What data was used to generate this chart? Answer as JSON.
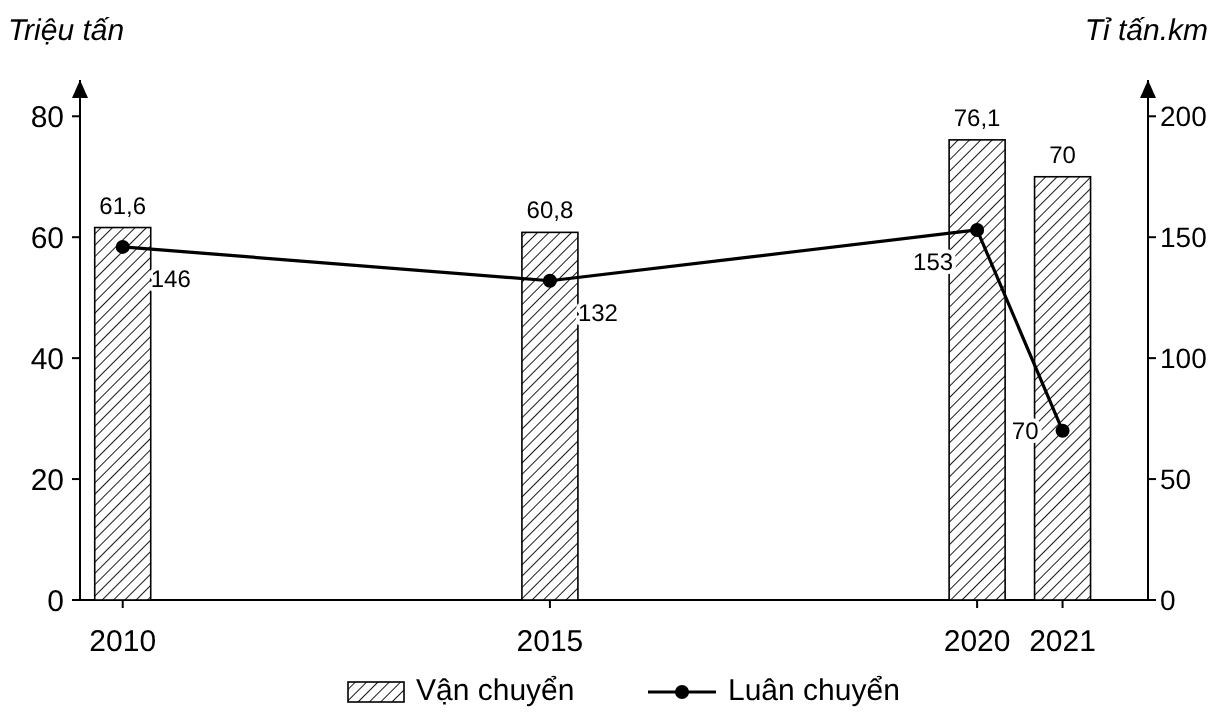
{
  "chart_data": {
    "type": "bar",
    "x": [
      2010,
      2015,
      2020,
      2021
    ],
    "xticks": [
      2010,
      2015,
      2020,
      2021
    ],
    "xlim": [
      2009.5,
      2022
    ],
    "ylabel": "Triệu tấn",
    "y2label": "Tỉ tấn.km",
    "ylim": [
      0,
      86
    ],
    "yticks": [
      0,
      20,
      40,
      60,
      80
    ],
    "y2lim": [
      0,
      215
    ],
    "y2ticks": [
      0,
      50,
      100,
      150,
      200
    ],
    "series": [
      {
        "name": "Vận chuyển",
        "color": "#000000",
        "values": [
          61.6,
          60.8,
          76.1,
          70
        ],
        "value_labels": [
          "61,6",
          "60,8",
          "76,1",
          "70"
        ]
      },
      {
        "name": "Luân chuyển",
        "type": "line",
        "axis": "y2",
        "color": "#000000",
        "marker": "circle",
        "line_style": "solid",
        "values": [
          146,
          132,
          153,
          70
        ],
        "value_labels": [
          "146",
          "132",
          "153",
          "70"
        ]
      }
    ],
    "legend": "bottom",
    "grid": false
  }
}
